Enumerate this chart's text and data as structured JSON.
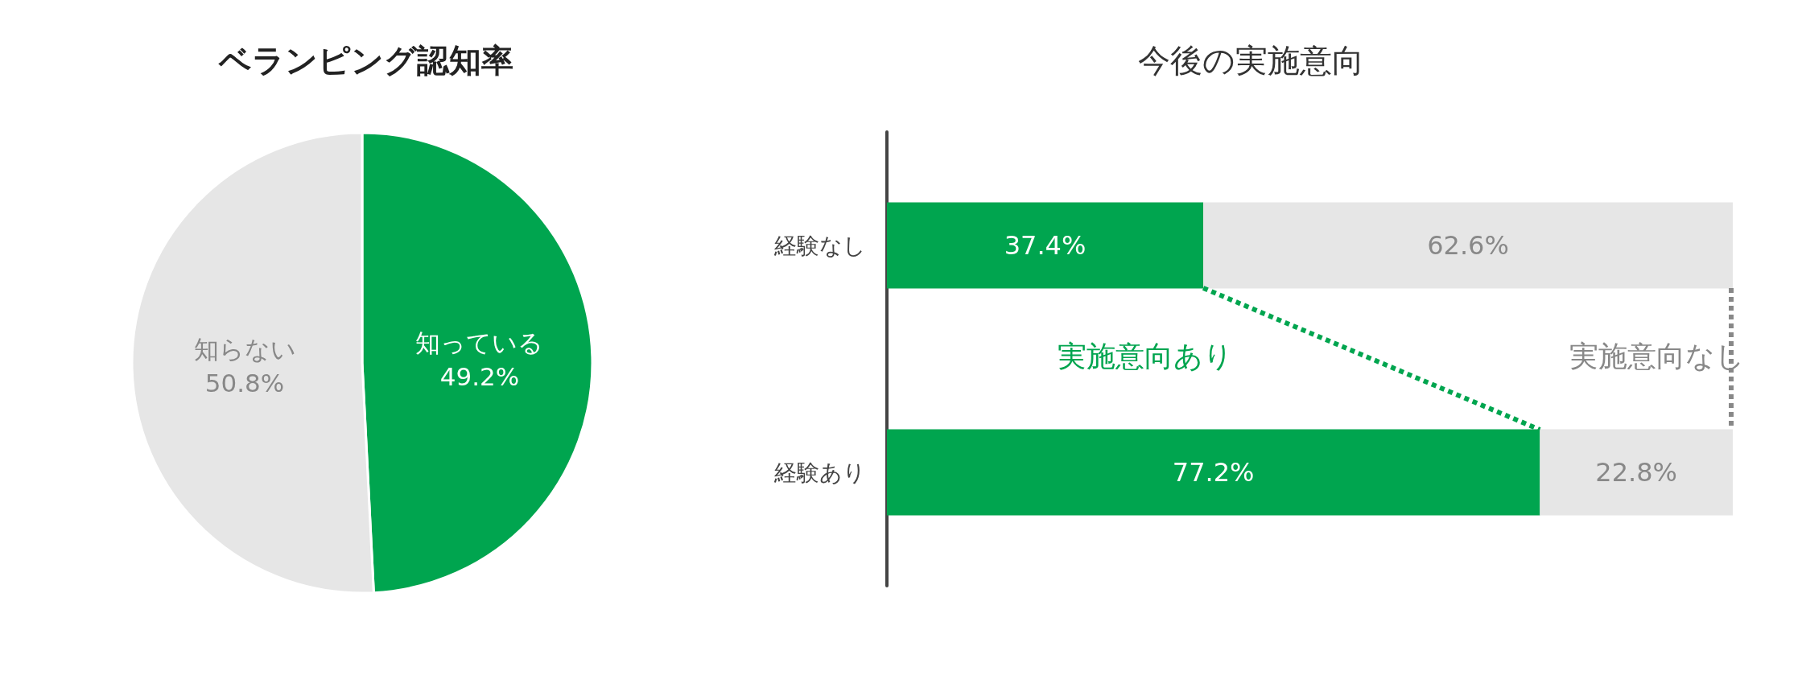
{
  "chart_data": [
    {
      "type": "pie",
      "title": "ベランピング認知率",
      "categories": [
        "知っている",
        "知らない"
      ],
      "values": [
        49.2,
        50.8
      ],
      "colors": [
        "#00a54f",
        "#e6e6e6"
      ],
      "value_labels": [
        "49.2%",
        "50.8%"
      ],
      "legend": false
    },
    {
      "type": "bar",
      "title": "今後の実施意向",
      "orientation": "horizontal",
      "stacked": true,
      "categories": [
        "経験なし",
        "経験あり"
      ],
      "series": [
        {
          "name": "実施意向あり",
          "color": "#00a54f",
          "values": [
            37.4,
            77.2
          ],
          "value_labels": [
            "37.4%",
            "77.2%"
          ]
        },
        {
          "name": "実施意向なし",
          "color": "#e6e6e6",
          "values": [
            62.6,
            22.8
          ],
          "value_labels": [
            "62.6%",
            "22.8%"
          ]
        }
      ],
      "legend": false
    }
  ]
}
